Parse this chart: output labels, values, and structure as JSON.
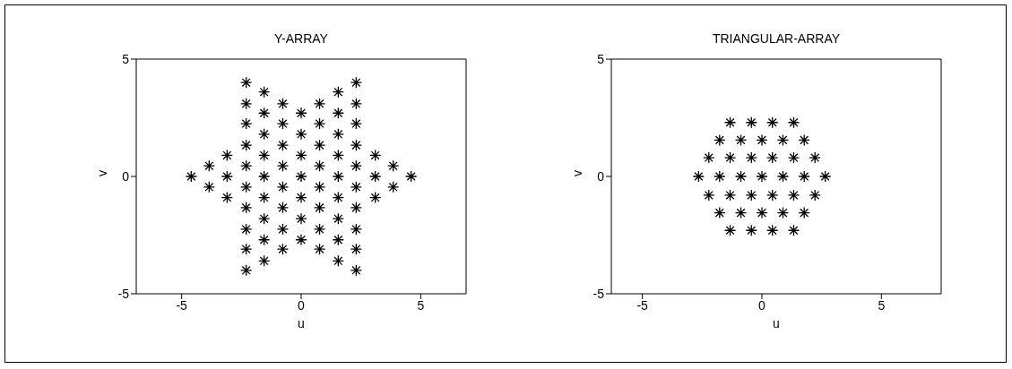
{
  "chart_data": [
    {
      "type": "scatter",
      "title": "Y-ARRAY",
      "xlabel": "u",
      "ylabel": "v",
      "marker": "cross",
      "grid": false,
      "xlim": [
        -6.9,
        6.9
      ],
      "ylim": [
        -5,
        5
      ],
      "xticks": [
        -5,
        0,
        5
      ],
      "yticks": [
        -5,
        0,
        5
      ],
      "series": [
        {
          "color": "#000000",
          "x": [
            -4.6,
            -3.85,
            -3.85,
            -3.1,
            -3.1,
            -3.1,
            -2.3,
            -2.3,
            -2.3,
            -2.3,
            -2.3,
            -2.3,
            -2.3,
            -2.3,
            -2.3,
            -2.3,
            -1.55,
            -1.55,
            -1.55,
            -1.55,
            -1.55,
            -1.55,
            -1.55,
            -1.55,
            -1.55,
            -0.77,
            -0.77,
            -0.77,
            -0.77,
            -0.77,
            -0.77,
            -0.77,
            -0.77,
            0,
            0,
            0,
            0,
            0,
            0,
            0,
            0.77,
            0.77,
            0.77,
            0.77,
            0.77,
            0.77,
            0.77,
            0.77,
            1.55,
            1.55,
            1.55,
            1.55,
            1.55,
            1.55,
            1.55,
            1.55,
            1.55,
            2.3,
            2.3,
            2.3,
            2.3,
            2.3,
            2.3,
            2.3,
            2.3,
            2.3,
            2.3,
            3.1,
            3.1,
            3.1,
            3.85,
            3.85,
            4.6
          ],
          "values": [
            0,
            0.45,
            -0.45,
            0.9,
            0,
            -0.9,
            4.0,
            3.1,
            2.25,
            1.33,
            0.45,
            -0.45,
            -1.33,
            -2.25,
            -3.1,
            -4.0,
            3.6,
            2.7,
            1.8,
            0.9,
            0,
            -0.9,
            -1.8,
            -2.7,
            -3.6,
            3.1,
            2.25,
            1.33,
            0.45,
            -0.45,
            -1.33,
            -2.25,
            -3.1,
            2.7,
            1.8,
            0.9,
            0,
            -0.9,
            -1.8,
            -2.7,
            3.1,
            2.25,
            1.33,
            0.45,
            -0.45,
            -1.33,
            -2.25,
            -3.1,
            3.6,
            2.7,
            1.8,
            0.9,
            0,
            -0.9,
            -1.8,
            -2.7,
            -3.6,
            4.0,
            3.1,
            2.25,
            1.33,
            0.45,
            -0.45,
            -1.33,
            -2.25,
            -3.1,
            -4.0,
            0.9,
            0,
            -0.9,
            0.45,
            -0.45,
            0
          ]
        }
      ]
    },
    {
      "type": "scatter",
      "title": "TRIANGULAR-ARRAY",
      "xlabel": "u",
      "ylabel": "v",
      "marker": "cross",
      "grid": false,
      "xlim": [
        -6.3,
        7.5
      ],
      "ylim": [
        -5,
        5
      ],
      "xticks": [
        -5,
        0,
        5
      ],
      "yticks": [
        -5,
        0,
        5
      ],
      "series": [
        {
          "color": "#000000",
          "x": [
            -1.33,
            -0.44,
            0.44,
            1.33,
            -1.77,
            -0.88,
            0,
            0.88,
            1.77,
            -2.22,
            -1.33,
            -0.44,
            0.44,
            1.33,
            2.22,
            -2.65,
            -1.77,
            -0.88,
            0,
            0.88,
            1.77,
            2.65,
            -2.22,
            -1.33,
            -0.44,
            0.44,
            1.33,
            2.22,
            -1.77,
            -0.88,
            0,
            0.88,
            1.77,
            -1.33,
            -0.44,
            0.44,
            1.33
          ],
          "values": [
            2.3,
            2.3,
            2.3,
            2.3,
            1.55,
            1.55,
            1.55,
            1.55,
            1.55,
            0.8,
            0.8,
            0.8,
            0.8,
            0.8,
            0.8,
            0,
            0,
            0,
            0,
            0,
            0,
            0,
            -0.8,
            -0.8,
            -0.8,
            -0.8,
            -0.8,
            -0.8,
            -1.55,
            -1.55,
            -1.55,
            -1.55,
            -1.55,
            -2.3,
            -2.3,
            -2.3,
            -2.3
          ]
        }
      ]
    }
  ]
}
